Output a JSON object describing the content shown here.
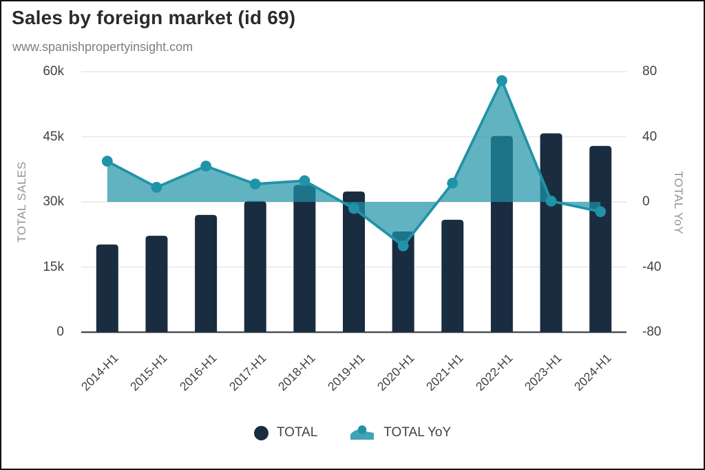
{
  "header": {
    "title": "Sales by foreign market (id 69)",
    "subtitle": "www.spanishpropertyinsight.com"
  },
  "chart_data": {
    "type": "bar",
    "subtype": "combo-bar-plus-area-line",
    "categories": [
      "2014-H1",
      "2015-H1",
      "2016-H1",
      "2017-H1",
      "2018-H1",
      "2019-H1",
      "2020-H1",
      "2021-H1",
      "2022-H1",
      "2023-H1",
      "2024-H1"
    ],
    "series": [
      {
        "name": "TOTAL",
        "type": "bar",
        "axis": "left",
        "color": "#1a2c40",
        "values": [
          20200,
          22200,
          27000,
          30200,
          33900,
          32400,
          23200,
          25900,
          45200,
          45800,
          42900
        ]
      },
      {
        "name": "TOTAL YoY",
        "type": "line-area",
        "axis": "right",
        "color": "#2093a8",
        "area_opacity": 0.7,
        "area_baseline": 0,
        "values": [
          25,
          9,
          22,
          11,
          13,
          -4,
          -27,
          11.5,
          74.5,
          0.5,
          -6
        ]
      }
    ],
    "left_axis": {
      "title": "TOTAL SALES",
      "min": 0,
      "max": 60000,
      "tick_labels": [
        "60k",
        "45k",
        "30k",
        "15k",
        "0"
      ]
    },
    "right_axis": {
      "title": "TOTAL YoY",
      "min": -80,
      "max": 80,
      "tick_labels": [
        "80",
        "40",
        "0",
        "-40",
        "-80"
      ]
    },
    "grid": true,
    "legend_position": "bottom",
    "legend": [
      {
        "label": "TOTAL",
        "swatch": "filled-circle"
      },
      {
        "label": "TOTAL YoY",
        "swatch": "area-with-marker-icon"
      }
    ]
  },
  "colors": {
    "background": "#ffffff",
    "frame_border": "#101010",
    "title_text": "#2b2b2b",
    "subtitle_text": "#7e7e7e",
    "tick_text": "#3f4245",
    "axis_title_text": "#8f9499",
    "grid_line": "#e7e7e7",
    "axis_line": "#4b5055",
    "bar": "#1a2c40",
    "line": "#2093a8"
  }
}
